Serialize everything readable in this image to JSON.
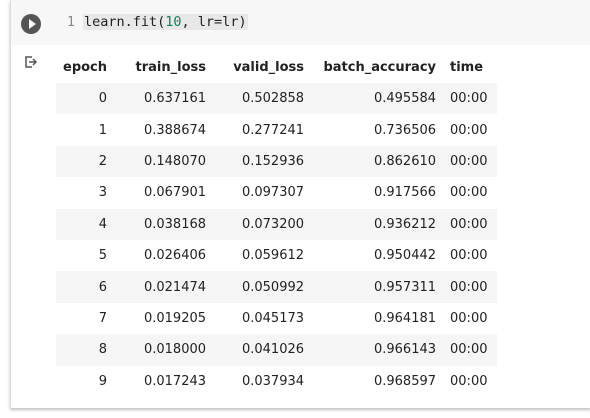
{
  "code": {
    "line_number": "1",
    "tokens": [
      "learn.fit(",
      "10",
      ", lr=lr)"
    ]
  },
  "table": {
    "header": [
      "epoch",
      "train_loss",
      "valid_loss",
      "batch_accuracy",
      "time"
    ],
    "rows": [
      [
        "0",
        "0.637161",
        "0.502858",
        "0.495584",
        "00:00"
      ],
      [
        "1",
        "0.388674",
        "0.277241",
        "0.736506",
        "00:00"
      ],
      [
        "2",
        "0.148070",
        "0.152936",
        "0.862610",
        "00:00"
      ],
      [
        "3",
        "0.067901",
        "0.097307",
        "0.917566",
        "00:00"
      ],
      [
        "4",
        "0.038168",
        "0.073200",
        "0.936212",
        "00:00"
      ],
      [
        "5",
        "0.026406",
        "0.059612",
        "0.950442",
        "00:00"
      ],
      [
        "6",
        "0.021474",
        "0.050992",
        "0.957311",
        "00:00"
      ],
      [
        "7",
        "0.019205",
        "0.045173",
        "0.964181",
        "00:00"
      ],
      [
        "8",
        "0.018000",
        "0.041026",
        "0.966143",
        "00:00"
      ],
      [
        "9",
        "0.017243",
        "0.037934",
        "0.968597",
        "00:00"
      ]
    ]
  }
}
